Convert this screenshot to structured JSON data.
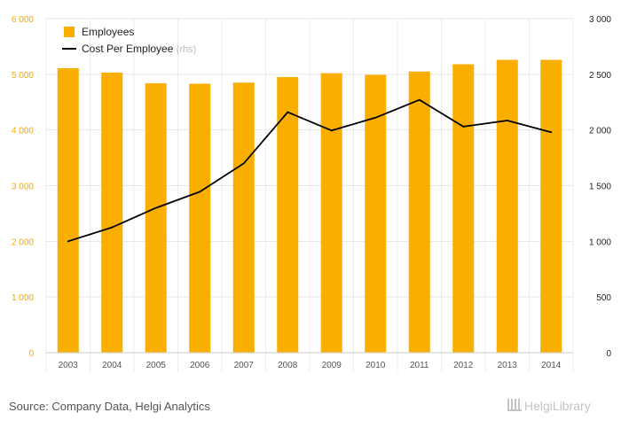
{
  "chart_data": {
    "type": "bar",
    "categories": [
      "2003",
      "2004",
      "2005",
      "2006",
      "2007",
      "2008",
      "2009",
      "2010",
      "2011",
      "2012",
      "2013",
      "2014"
    ],
    "series": [
      {
        "name": "Employees",
        "type": "bar",
        "axis": "left",
        "color": "#f9ae00",
        "values": [
          5110,
          5030,
          4840,
          4830,
          4850,
          4950,
          5020,
          4990,
          5050,
          5180,
          5260,
          5260
        ]
      },
      {
        "name": "Cost Per Employee",
        "name_note": "(rhs)",
        "type": "line",
        "axis": "right",
        "color": "#000000",
        "values": [
          1000,
          1125,
          1300,
          1445,
          1700,
          2160,
          1995,
          2110,
          2270,
          2030,
          2085,
          1980
        ]
      }
    ],
    "yleft": {
      "ylim": [
        0,
        6000
      ],
      "ticks": [
        "0",
        "1 000",
        "2 000",
        "3 000",
        "4 000",
        "5 000",
        "6 000"
      ],
      "color": "#f5a800"
    },
    "yright": {
      "ylim": [
        0,
        3000
      ],
      "ticks": [
        "0",
        "500",
        "1 000",
        "1 500",
        "2 000",
        "2 500",
        "3 000"
      ]
    },
    "grid": true,
    "legend": "top-left"
  },
  "footer": {
    "source": "Source: Company Data, Helgi Analytics",
    "logo": "HelgiLibrary"
  }
}
